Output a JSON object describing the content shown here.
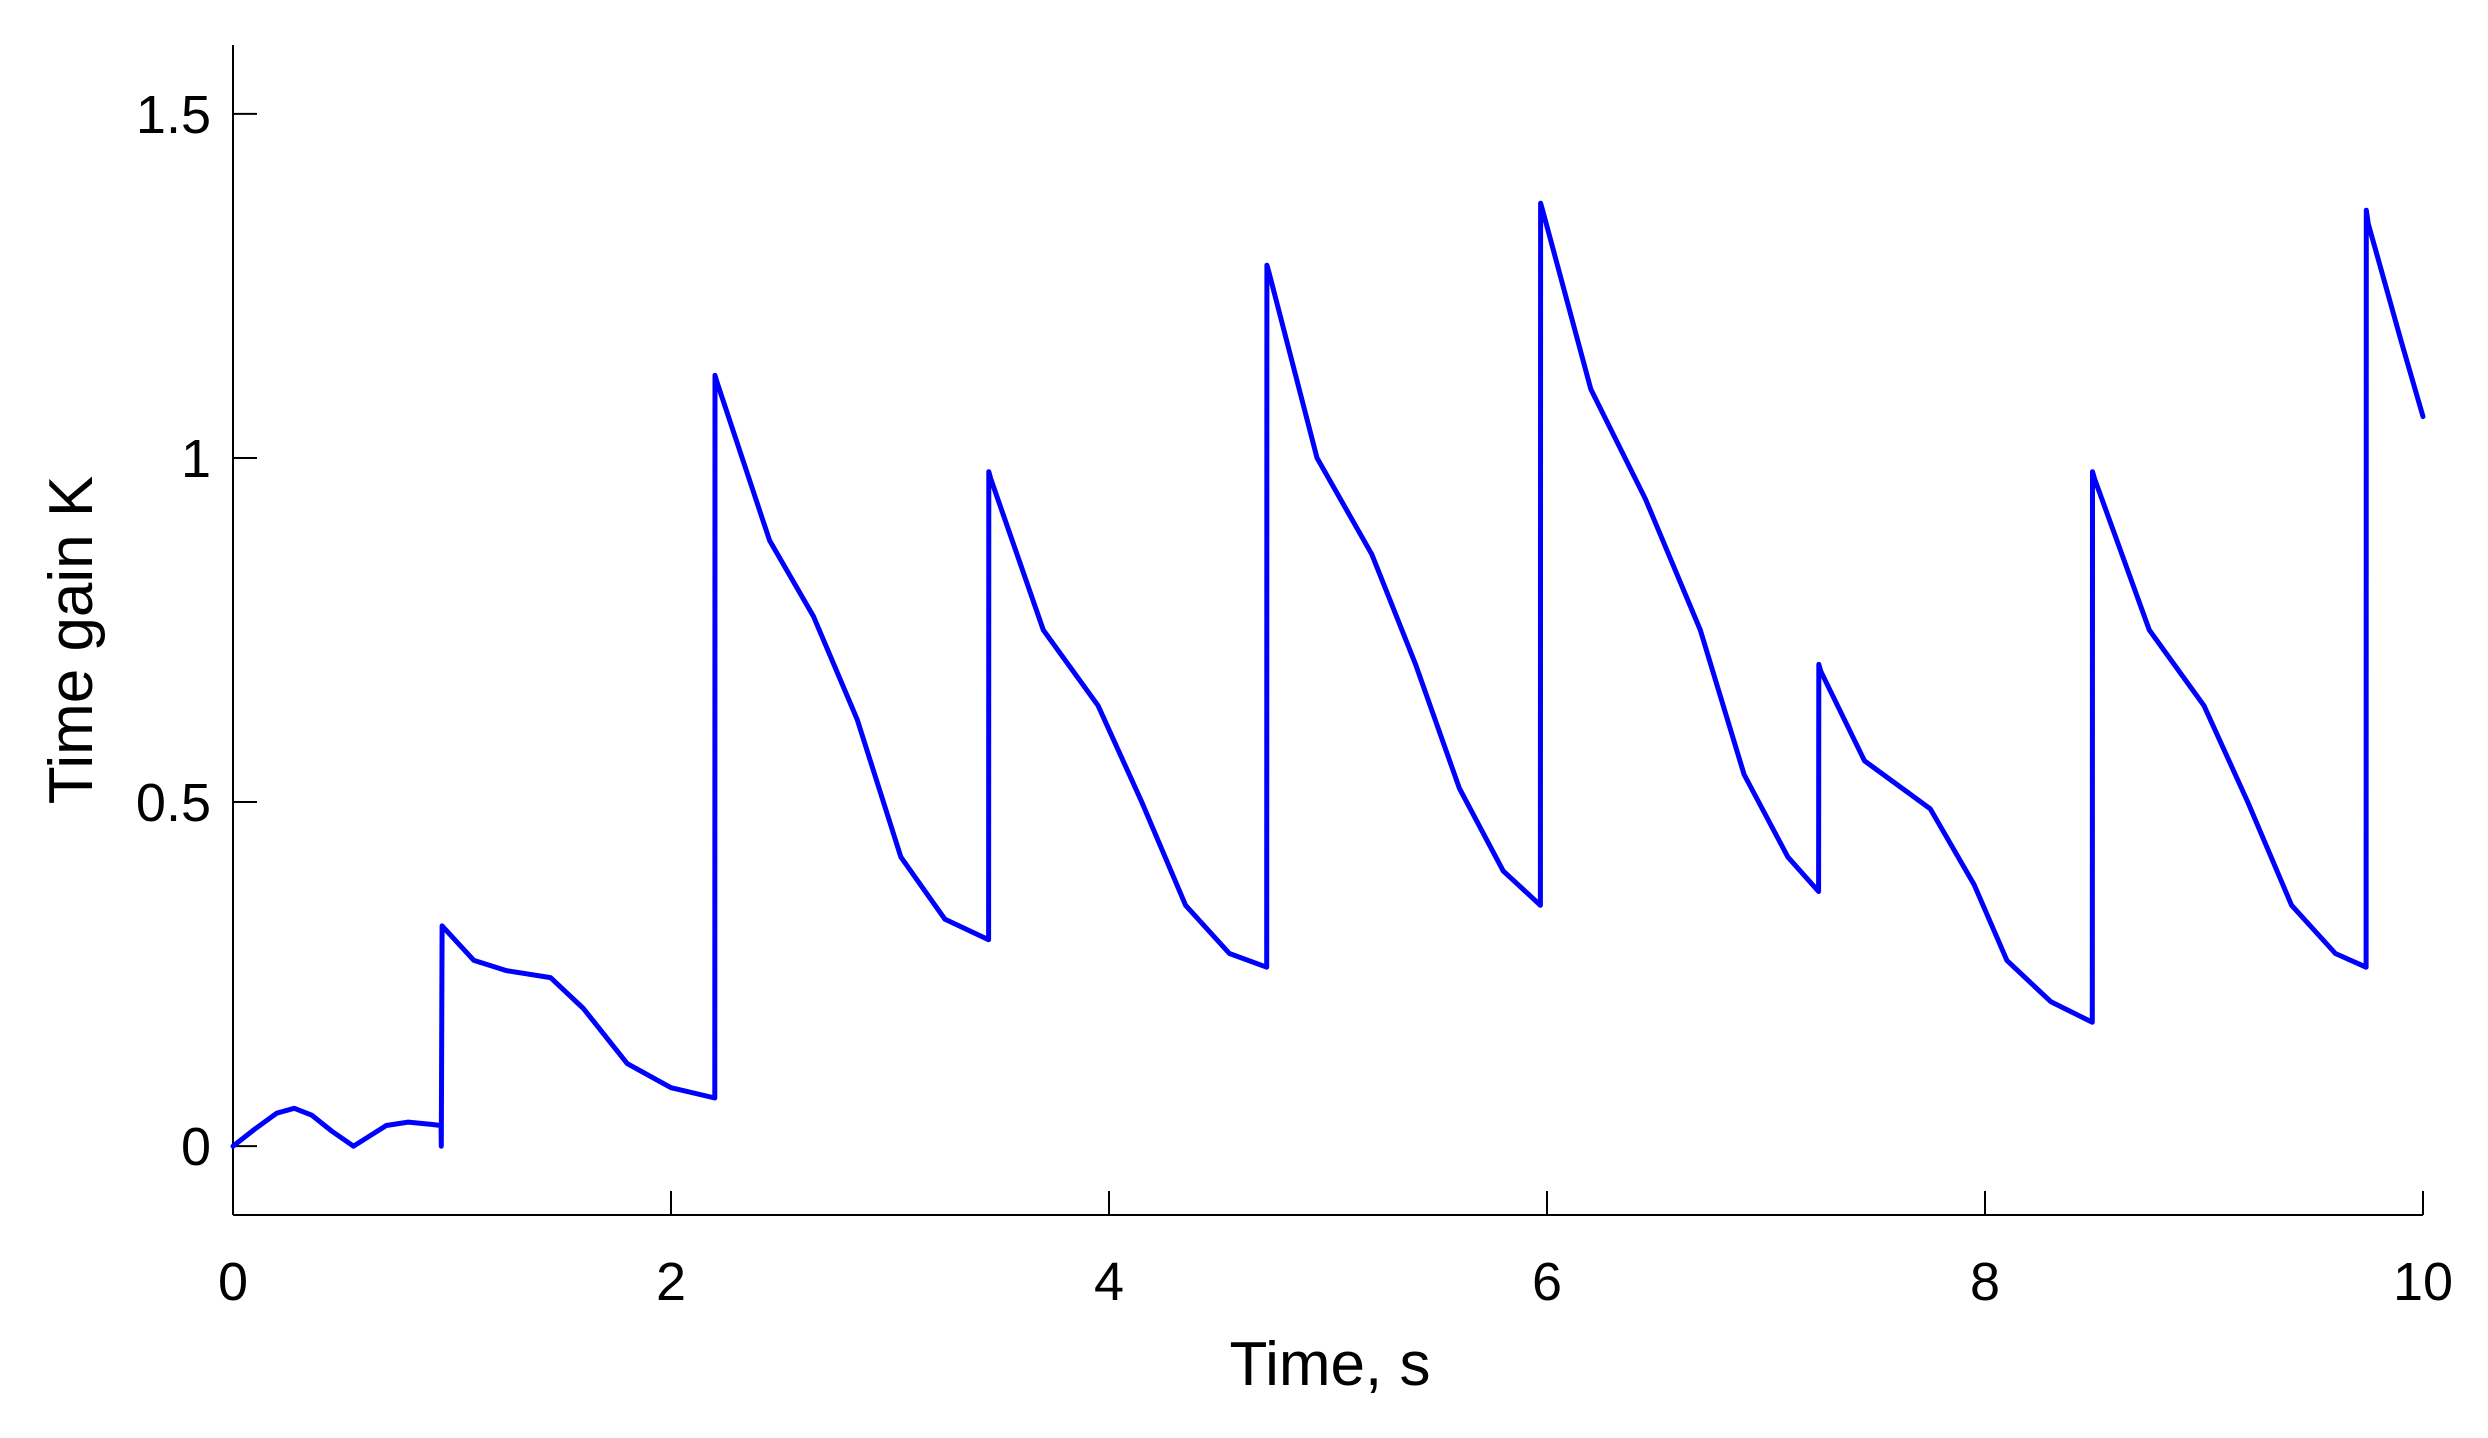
{
  "chart_data": {
    "type": "line",
    "title": "",
    "xlabel": "Time, s",
    "ylabel": "Time gain K",
    "xlim": [
      0,
      10
    ],
    "ylim": [
      -0.1,
      1.6
    ],
    "xticks": [
      0,
      2,
      4,
      6,
      8,
      10
    ],
    "xtick_labels": [
      "0",
      "2",
      "4",
      "6",
      "8",
      "10"
    ],
    "yticks": [
      0,
      0.5,
      1,
      1.5
    ],
    "ytick_labels": [
      "0",
      "0.5",
      "1",
      "1.5"
    ],
    "grid": false,
    "legend": "none",
    "colors": {
      "line": "#0000ff",
      "axis": "#000000",
      "background": "#ffffff"
    },
    "series": [
      {
        "x": [
          0,
          0.1,
          0.2,
          0.28,
          0.36,
          0.45,
          0.55,
          0.6,
          0.7,
          0.8,
          0.9,
          0.95,
          0.951,
          0.955,
          1.1,
          1.25,
          1.45,
          1.6,
          1.8,
          2.0,
          2.2,
          2.201,
          2.21,
          2.45,
          2.65,
          2.85,
          3.05,
          3.25,
          3.45,
          3.451,
          3.46,
          3.7,
          3.95,
          4.15,
          4.35,
          4.55,
          4.72,
          4.721,
          4.73,
          4.95,
          5.2,
          5.4,
          5.6,
          5.8,
          5.97,
          5.971,
          5.98,
          6.2,
          6.45,
          6.7,
          6.9,
          7.1,
          7.24,
          7.241,
          7.25,
          7.45,
          7.75,
          7.95,
          8.1,
          8.3,
          8.49,
          8.491,
          8.5,
          8.75,
          9.0,
          9.2,
          9.4,
          9.6,
          9.74,
          9.741,
          9.75,
          9.9,
          10.0
        ],
        "y": [
          0,
          0.025,
          0.048,
          0.055,
          0.045,
          0.022,
          0,
          0.01,
          0.03,
          0.035,
          0.032,
          0.03,
          0,
          0.32,
          0.27,
          0.255,
          0.245,
          0.2,
          0.12,
          0.085,
          0.07,
          1.12,
          1.11,
          0.88,
          0.77,
          0.62,
          0.42,
          0.33,
          0.3,
          0.98,
          0.97,
          0.75,
          0.64,
          0.5,
          0.35,
          0.28,
          0.26,
          1.28,
          1.27,
          1.0,
          0.86,
          0.7,
          0.52,
          0.4,
          0.35,
          1.37,
          1.36,
          1.1,
          0.94,
          0.75,
          0.54,
          0.42,
          0.37,
          0.7,
          0.69,
          0.56,
          0.49,
          0.38,
          0.27,
          0.21,
          0.18,
          0.98,
          0.97,
          0.75,
          0.64,
          0.5,
          0.35,
          0.28,
          0.26,
          1.36,
          1.34,
          1.17,
          1.06
        ]
      }
    ]
  }
}
